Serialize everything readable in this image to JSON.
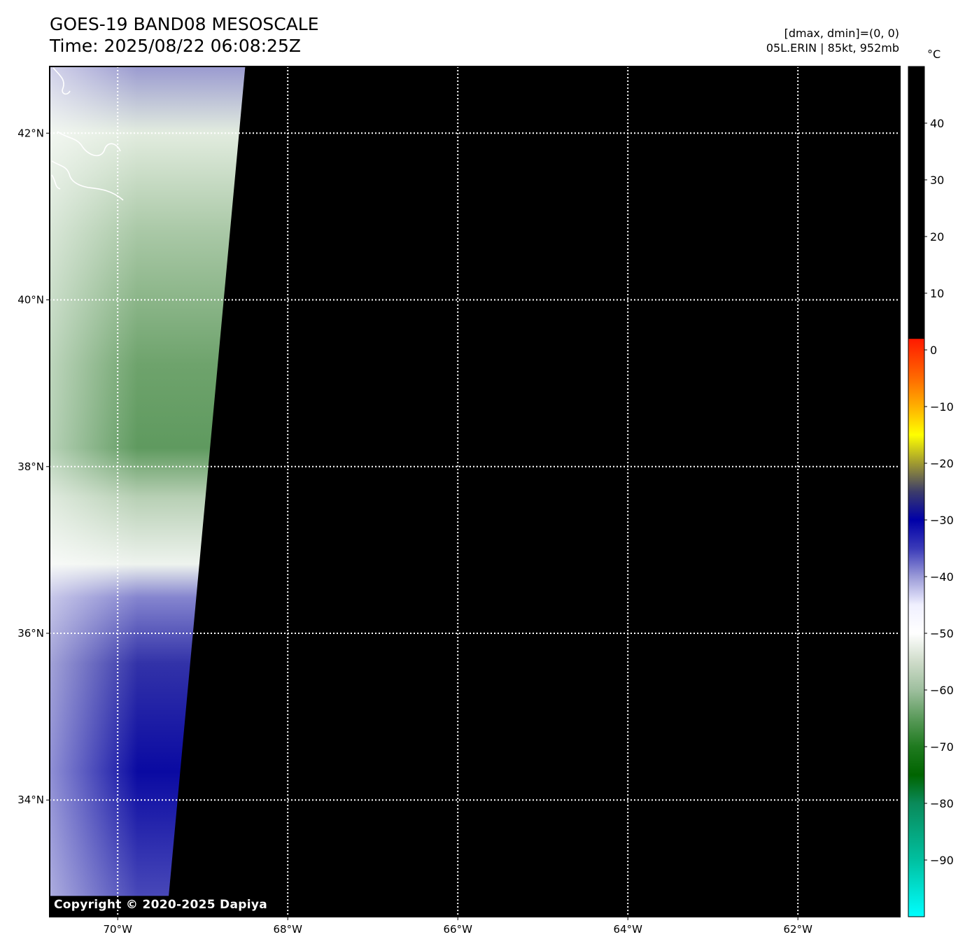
{
  "header": {
    "title_line1": "GOES-19 BAND08 MESOSCALE",
    "title_line2": "Time: 2025/08/22 06:08:25Z",
    "info_line1": "[dmax, dmin]=(0, 0)",
    "info_line2": "05L.ERIN | 85kt, 952mb"
  },
  "copyright": "Copyright © 2020-2025 Dapiya",
  "chart_data": {
    "type": "heatmap",
    "title": "GOES-19 BAND08 MESOSCALE",
    "subtitle": "Time: 2025/08/22 06:08:25Z",
    "annotations": [
      "[dmax, dmin]=(0, 0)",
      "05L.ERIN | 85kt, 952mb"
    ],
    "x_axis": {
      "unit": "degrees longitude",
      "range": [
        -70.8,
        -60.8
      ],
      "ticks": [
        -70,
        -68,
        -66,
        -64,
        -62
      ],
      "tick_labels": [
        "70°W",
        "68°W",
        "66°W",
        "64°W",
        "62°W"
      ]
    },
    "y_axis": {
      "unit": "degrees latitude",
      "range": [
        32.6,
        42.8
      ],
      "ticks": [
        34,
        36,
        38,
        40,
        42
      ],
      "tick_labels": [
        "34°N",
        "36°N",
        "38°N",
        "40°N",
        "42°N"
      ]
    },
    "grid": true,
    "data_coverage": {
      "description": "valid imagery only in western strip; rest of domain no data (black)",
      "east_edge_lon_at_top": -68.5,
      "east_edge_lon_at_bottom": -69.4,
      "bottom_lat": 32.85
    },
    "colorbar": {
      "label": "°C",
      "range": [
        -100,
        50
      ],
      "ticks": [
        40,
        30,
        20,
        10,
        0,
        -10,
        -20,
        -30,
        -40,
        -50,
        -60,
        -70,
        -80,
        -90
      ],
      "tick_labels": [
        "40",
        "30",
        "20",
        "10",
        "0",
        "−10",
        "−20",
        "−30",
        "−40",
        "−50",
        "−60",
        "−70",
        "−80",
        "−90"
      ],
      "stops": [
        {
          "value": 50,
          "color": "#000000"
        },
        {
          "value": 2,
          "color": "#000000"
        },
        {
          "value": 1.9,
          "color": "#ff1a00"
        },
        {
          "value": -5,
          "color": "#ff6a00"
        },
        {
          "value": -10,
          "color": "#ffb000"
        },
        {
          "value": -15,
          "color": "#ffff00"
        },
        {
          "value": -20,
          "color": "#a09a30"
        },
        {
          "value": -25,
          "color": "#3c3c6a"
        },
        {
          "value": -30,
          "color": "#0000a8"
        },
        {
          "value": -35,
          "color": "#3a3ab8"
        },
        {
          "value": -40,
          "color": "#9a9ad8"
        },
        {
          "value": -45,
          "color": "#f0f0ff"
        },
        {
          "value": -50,
          "color": "#ffffff"
        },
        {
          "value": -55,
          "color": "#cfdcca"
        },
        {
          "value": -60,
          "color": "#9ebf9e"
        },
        {
          "value": -65,
          "color": "#5a9a5a"
        },
        {
          "value": -70,
          "color": "#1f7a1f"
        },
        {
          "value": -75,
          "color": "#006400"
        },
        {
          "value": -80,
          "color": "#0a8a5a"
        },
        {
          "value": -90,
          "color": "#00c0a0"
        },
        {
          "value": -100,
          "color": "#00ffff"
        }
      ]
    },
    "colors": {
      "no_data": "#000000",
      "grid": "#ffffff",
      "coastline": "#ffffff"
    }
  }
}
